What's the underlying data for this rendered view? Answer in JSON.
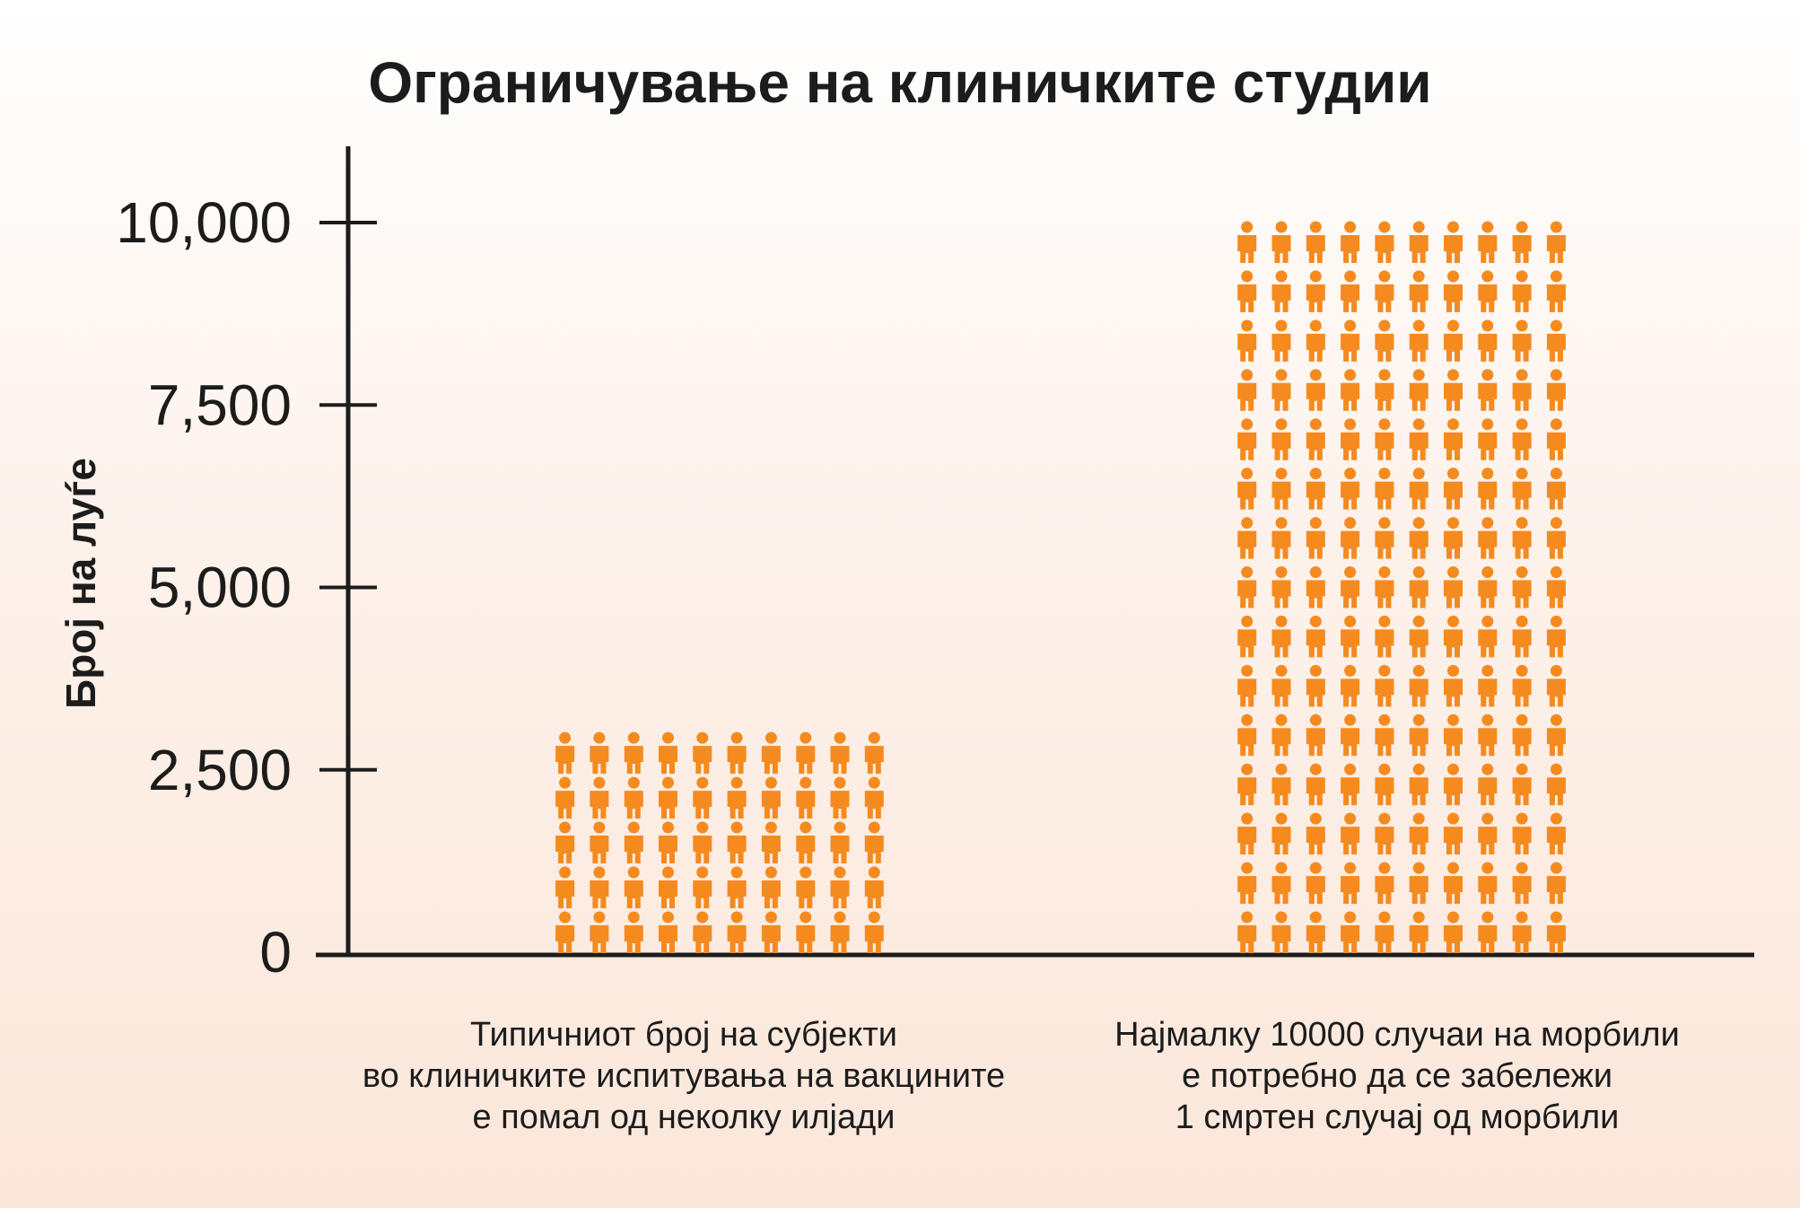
{
  "chart_data": {
    "type": "bar",
    "title": "Ограничување на клиничките студии",
    "ylabel": "Број на луѓе",
    "xlabel": "",
    "ylim": [
      0,
      11000
    ],
    "yticks": [
      "0",
      "2,500",
      "5,000",
      "7,500",
      "10,000"
    ],
    "ytick_values": [
      0,
      2500,
      5000,
      7500,
      10000
    ],
    "categories": [
      [
        "Типичниот број на субјекти",
        "во клиничките испитувања на вакцините",
        "е помал од неколку илјади"
      ],
      [
        "Најмалку 10000 случаи на морбили",
        "е потребно да се забележи",
        "1 смртен случај од морбили"
      ]
    ],
    "values": [
      3000,
      10000
    ],
    "icon": "person-icon",
    "icon_color": "#f58a1f",
    "axis_color": "#1c1c1c",
    "bars": [
      {
        "columns": 10,
        "rows": 5
      },
      {
        "columns": 10,
        "rows": 15
      }
    ]
  }
}
